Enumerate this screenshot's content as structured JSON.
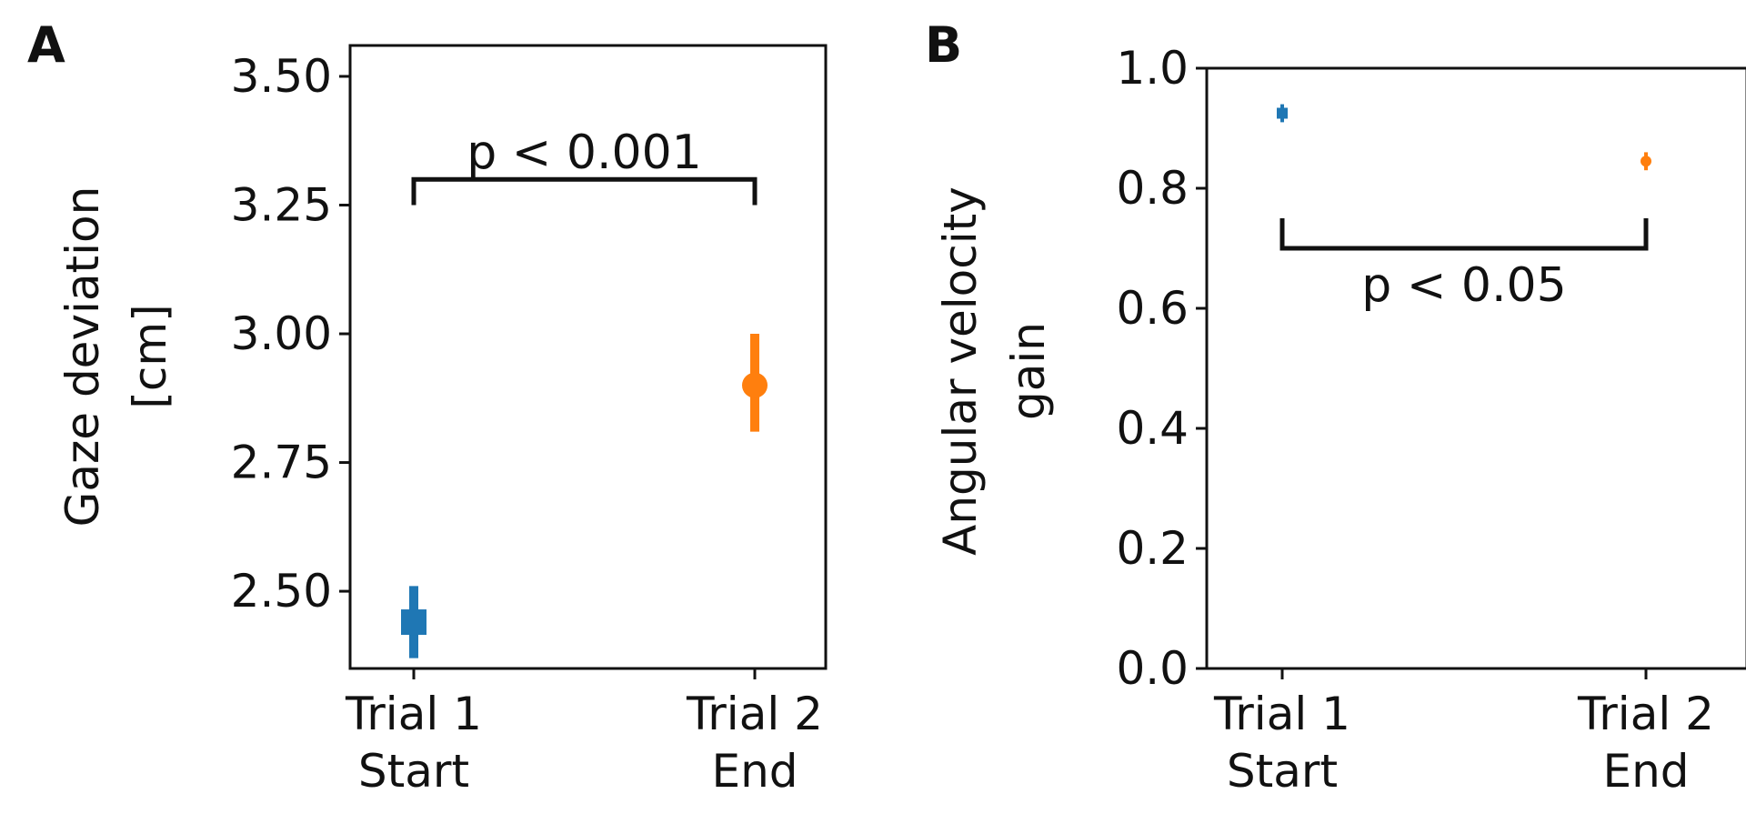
{
  "figure": {
    "panel_a_letter": "A",
    "panel_b_letter": "B"
  },
  "chart_data": [
    {
      "type": "scatter",
      "panel": "A",
      "ylabel": [
        "Gaze deviation",
        "[cm]"
      ],
      "xlabel": "",
      "categories": [
        [
          "Trial 1",
          "Start"
        ],
        [
          "Trial 2",
          "End"
        ]
      ],
      "ylim": [
        2.35,
        3.56
      ],
      "yticks": [
        2.5,
        2.75,
        3.0,
        3.25,
        3.5
      ],
      "ytick_labels": [
        "2.50",
        "2.75",
        "3.00",
        "3.25",
        "3.50"
      ],
      "series": [
        {
          "name": "Trial 1 Start",
          "value": 2.44,
          "err_low": 2.37,
          "err_high": 2.51,
          "marker": "square",
          "color": "#1f77b4"
        },
        {
          "name": "Trial 2 End",
          "value": 2.9,
          "err_low": 2.81,
          "err_high": 3.0,
          "marker": "circle",
          "color": "#ff7f0e"
        }
      ],
      "annotation": {
        "text": "p < 0.001",
        "y": 3.3,
        "tick_to": 3.25,
        "from_category": 0,
        "to_category": 1
      }
    },
    {
      "type": "scatter",
      "panel": "B",
      "ylabel": [
        "Angular velocity",
        "gain"
      ],
      "xlabel": "",
      "categories": [
        [
          "Trial 1",
          "Start"
        ],
        [
          "Trial 2",
          "End"
        ]
      ],
      "ylim": [
        0.0,
        1.0
      ],
      "yticks": [
        0.0,
        0.2,
        0.4,
        0.6,
        0.8,
        1.0
      ],
      "ytick_labels": [
        "0.0",
        "0.2",
        "0.4",
        "0.6",
        "0.8",
        "1.0"
      ],
      "series": [
        {
          "name": "Trial 1 Start",
          "value": 0.925,
          "err_low": 0.91,
          "err_high": 0.94,
          "marker": "square",
          "color": "#1f77b4"
        },
        {
          "name": "Trial 2 End",
          "value": 0.845,
          "err_low": 0.83,
          "err_high": 0.86,
          "marker": "circle",
          "color": "#ff7f0e"
        }
      ],
      "annotation": {
        "text": "p < 0.05",
        "y": 0.7,
        "tick_to": 0.75,
        "from_category": 0,
        "to_category": 1
      }
    }
  ]
}
